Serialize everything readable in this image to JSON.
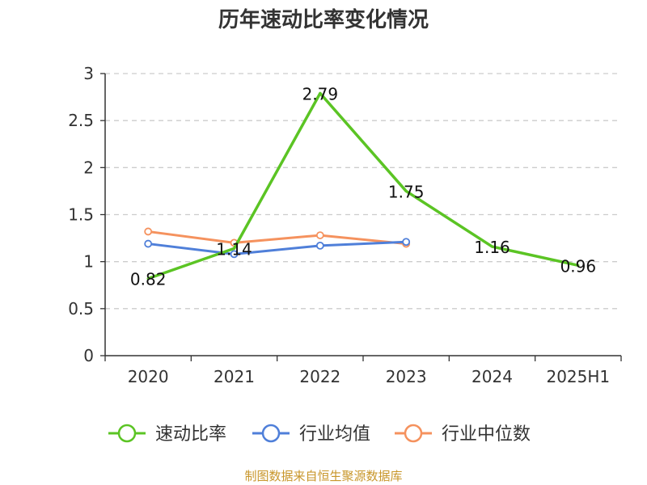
{
  "chart_data": {
    "type": "line",
    "title": "历年速动比率变化情况",
    "categories": [
      "2020",
      "2021",
      "2022",
      "2023",
      "2024",
      "2025H1"
    ],
    "ylim": [
      0,
      3
    ],
    "yticks": [
      "0",
      "0.5",
      "1",
      "1.5",
      "2",
      "2.5",
      "3"
    ],
    "grid": true,
    "legend_position": "bottom",
    "series": [
      {
        "name": "速动比率",
        "color": "#5bc424",
        "values": [
          0.82,
          1.14,
          2.79,
          1.75,
          1.16,
          0.96
        ],
        "labels": [
          "0.82",
          "1.14",
          "2.79",
          "1.75",
          "1.16",
          "0.96"
        ]
      },
      {
        "name": "行业均值",
        "color": "#4f7fd9",
        "values": [
          1.19,
          1.08,
          1.17,
          1.21,
          null,
          null
        ]
      },
      {
        "name": "行业中位数",
        "color": "#f5925e",
        "values": [
          1.32,
          1.2,
          1.28,
          1.19,
          null,
          null
        ]
      }
    ]
  },
  "source": "制图数据来自恒生聚源数据库"
}
